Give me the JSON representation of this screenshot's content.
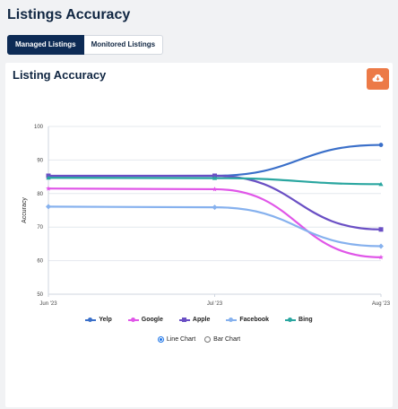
{
  "page": {
    "title": "Listings Accuracy"
  },
  "tabs": [
    {
      "label": "Managed Listings",
      "active": true
    },
    {
      "label": "Monitored Listings",
      "active": false
    }
  ],
  "card": {
    "title": "Listing Accuracy",
    "download_icon": "cloud-download-icon",
    "download_color": "#ec7a47"
  },
  "chart_data": {
    "type": "line",
    "title": "Listing Accuracy",
    "xlabel": "",
    "ylabel": "Accuracy",
    "categories": [
      "Jun '23",
      "Jul '23",
      "Aug '23"
    ],
    "y_ticks": [
      50,
      60,
      70,
      80,
      90,
      100
    ],
    "ylim": [
      50,
      100
    ],
    "grid": true,
    "legend_position": "bottom",
    "series": [
      {
        "name": "Yelp",
        "color": "#3a6fc9",
        "marker": "circle",
        "values": [
          85.2,
          85.3,
          94.5
        ]
      },
      {
        "name": "Google",
        "color": "#e056e8",
        "marker": "star",
        "values": [
          81.5,
          81.3,
          61
        ]
      },
      {
        "name": "Apple",
        "color": "#6a4fc4",
        "marker": "square",
        "values": [
          85.3,
          85.3,
          69.3
        ]
      },
      {
        "name": "Facebook",
        "color": "#86b1ee",
        "marker": "diamond",
        "values": [
          76.1,
          75.9,
          64.3
        ]
      },
      {
        "name": "Bing",
        "color": "#2aa6a0",
        "marker": "triangle",
        "values": [
          84.7,
          84.6,
          82.8
        ]
      }
    ]
  },
  "chart_options": [
    {
      "label": "Line Chart",
      "checked": true
    },
    {
      "label": "Bar Chart",
      "checked": false
    }
  ]
}
